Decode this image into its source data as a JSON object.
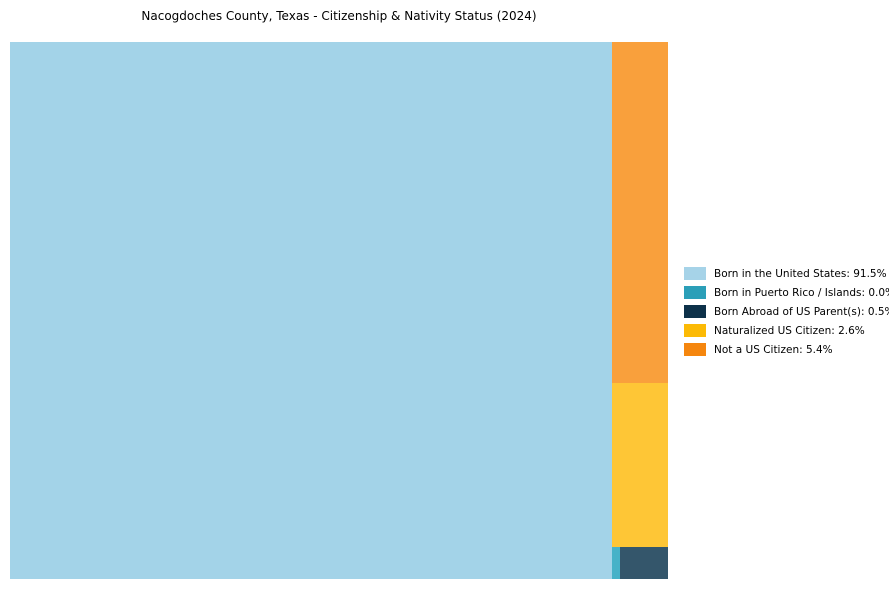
{
  "title": "Nacogdoches County, Texas - Citizenship & Nativity Status (2024)",
  "chart_data": {
    "type": "treemap",
    "title": "Nacogdoches County, Texas - Citizenship & Nativity Status (2024)",
    "legend_position": "right",
    "grid": false,
    "series": [
      {
        "name": "Born in the United States",
        "value": 91.5,
        "label": "Born in the United States: 91.5%",
        "color": "#a3d3e8",
        "legend_color": "#a6d3e8"
      },
      {
        "name": "Born in Puerto Rico / Islands",
        "value": 0.0,
        "label": "Born in Puerto Rico / Islands: 0.0%",
        "color": "#47b2c8",
        "legend_color": "#2b9fb8"
      },
      {
        "name": "Born Abroad of US Parent(s)",
        "value": 0.5,
        "label": "Born Abroad of US Parent(s): 0.5%",
        "color": "#34566b",
        "legend_color": "#0d3149"
      },
      {
        "name": "Naturalized US Citizen",
        "value": 2.6,
        "label": "Naturalized US Citizen: 2.6%",
        "color": "#fec636",
        "legend_color": "#fcba05"
      },
      {
        "name": "Not a US Citizen",
        "value": 5.4,
        "label": "Not a US Citizen: 5.4%",
        "color": "#f9a03c",
        "legend_color": "#f5860e"
      }
    ]
  }
}
